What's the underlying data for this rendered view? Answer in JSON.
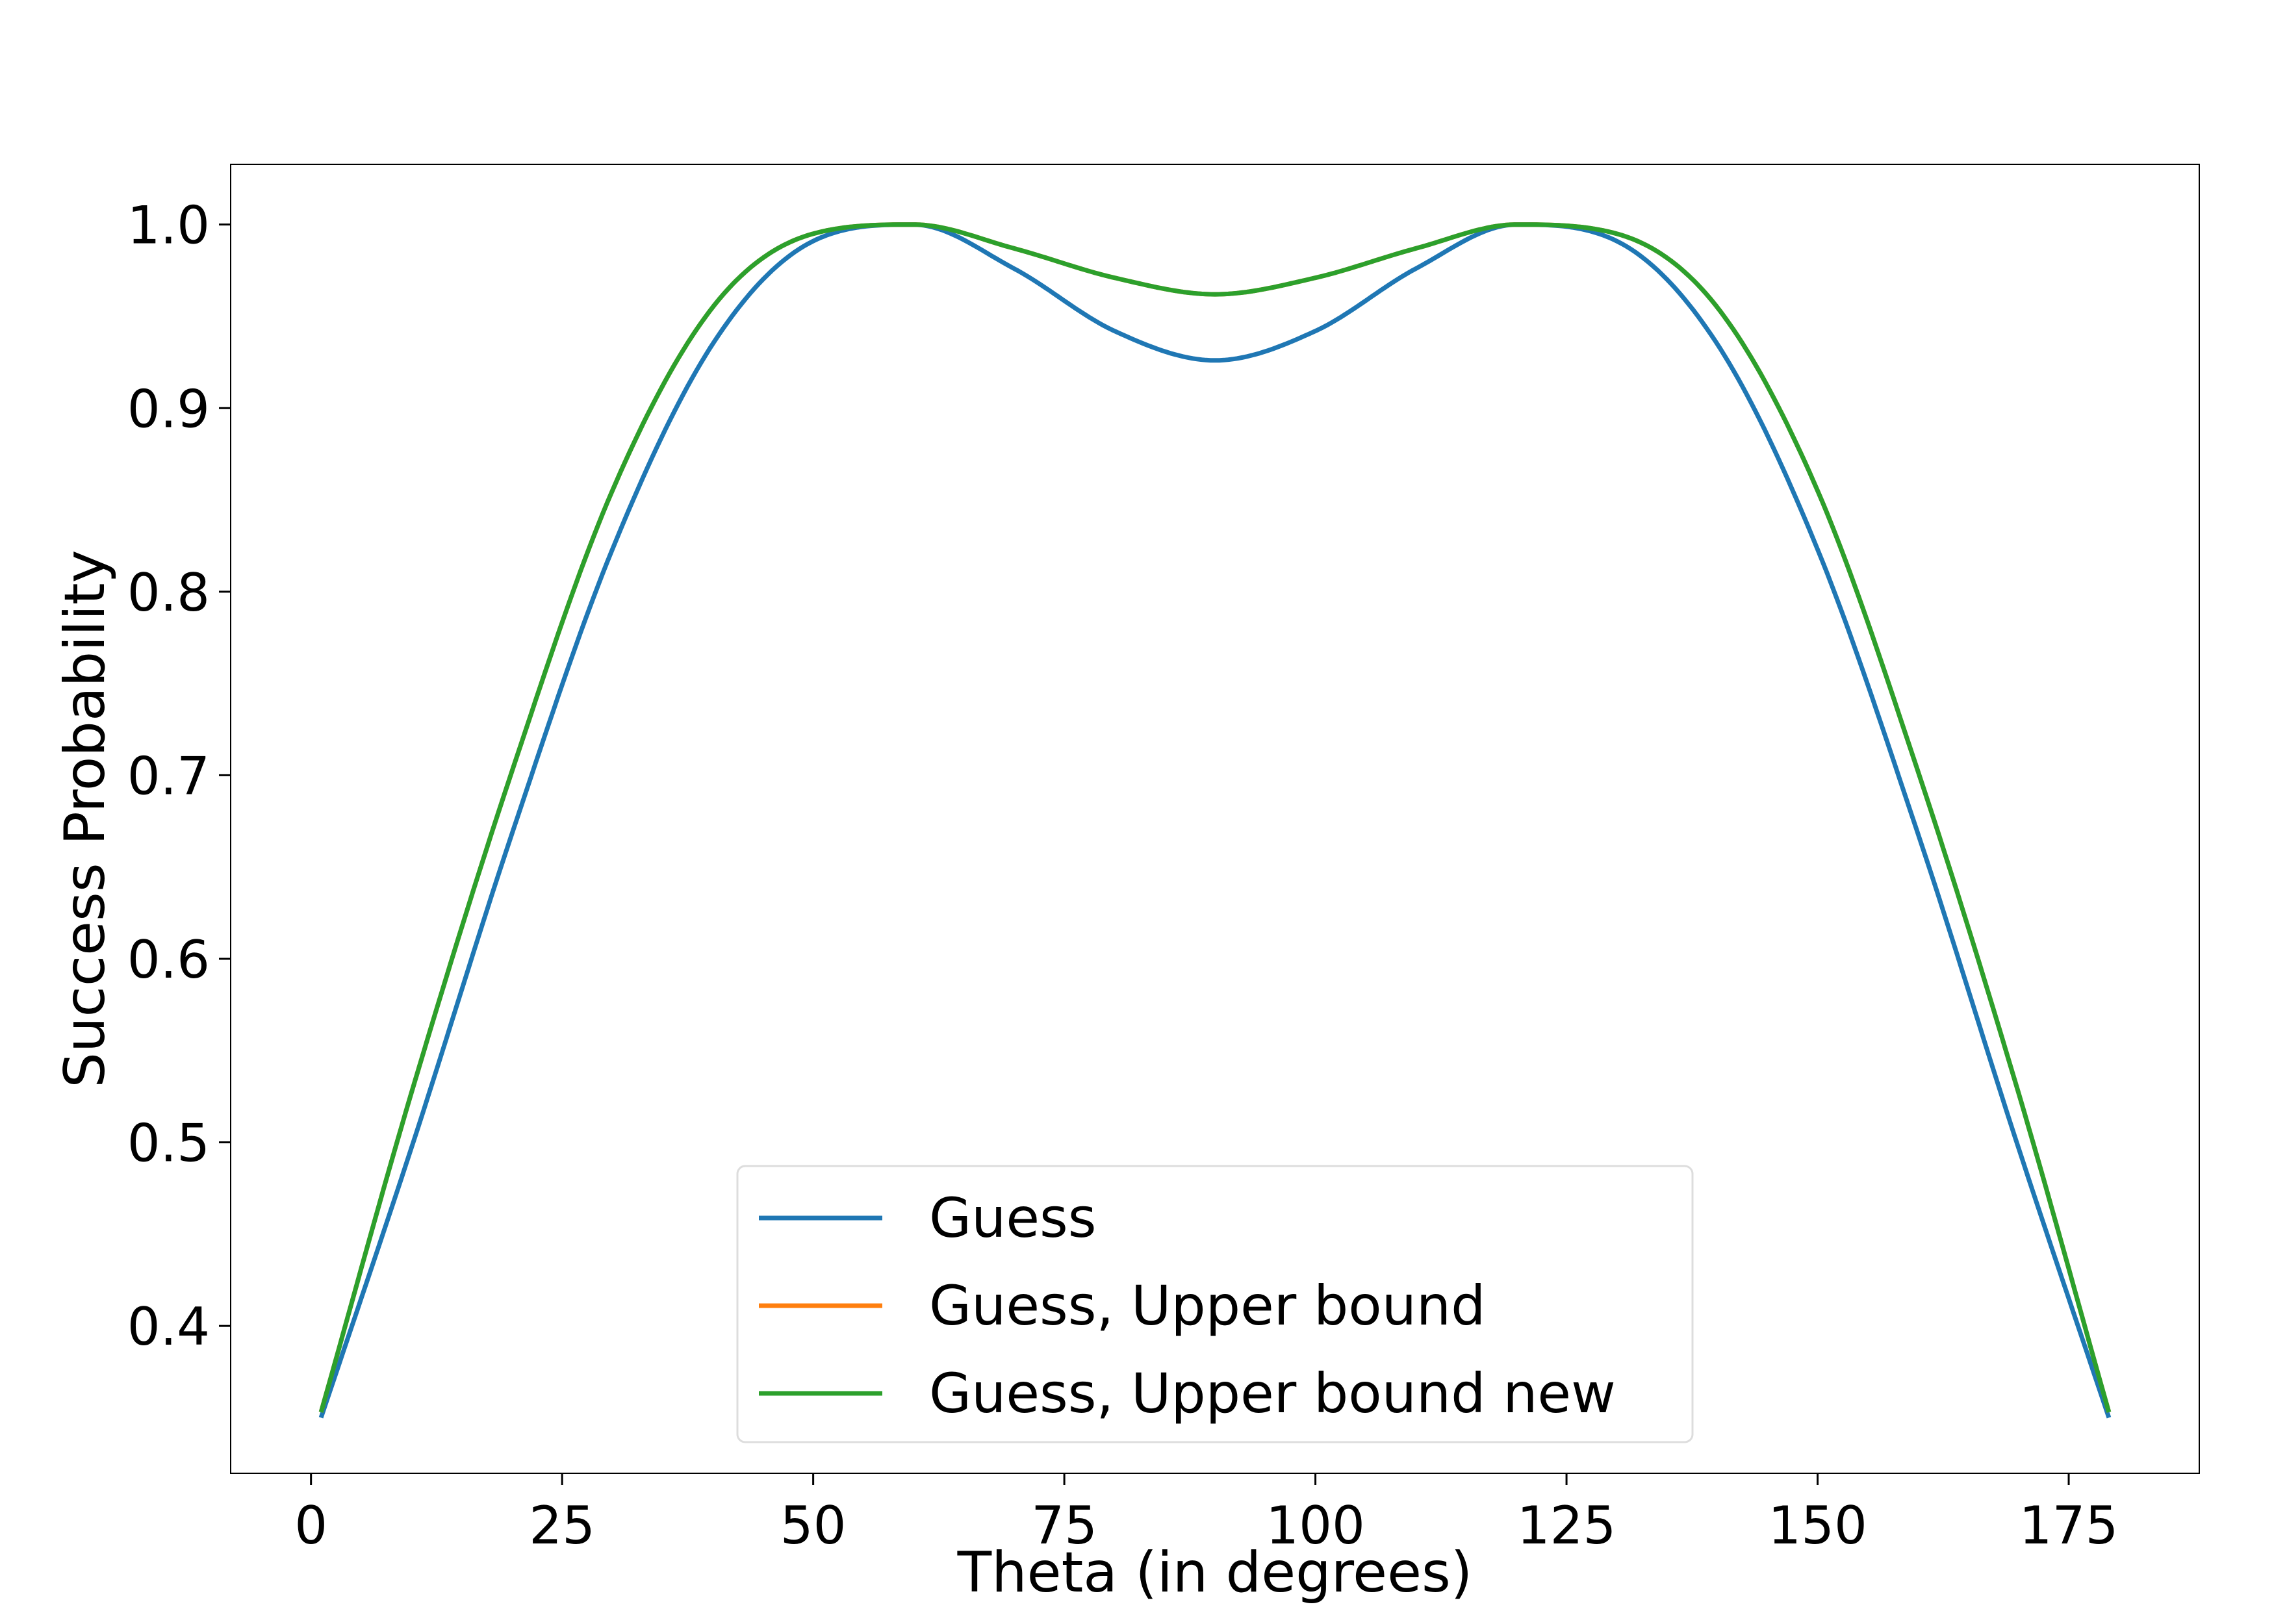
{
  "chart_data": {
    "type": "line",
    "title": "",
    "xlabel": "Theta (in degrees)",
    "ylabel": "Success Probability",
    "xlim": [
      -8,
      188
    ],
    "ylim": [
      0.3197,
      1.0328
    ],
    "xticks": [
      0,
      25,
      50,
      75,
      100,
      125,
      150,
      175
    ],
    "xtick_labels": [
      "0",
      "25",
      "50",
      "75",
      "100",
      "125",
      "150",
      "175"
    ],
    "yticks": [
      0.4,
      0.5,
      0.6,
      0.7,
      0.8,
      0.9,
      1.0
    ],
    "ytick_labels": [
      "0.4",
      "0.5",
      "0.6",
      "0.7",
      "0.8",
      "0.9",
      "1.0"
    ],
    "grid": false,
    "legend_position": "bottom-center",
    "x": [
      1,
      10,
      20,
      30,
      40,
      50,
      60,
      70,
      80,
      90,
      100,
      110,
      120,
      130,
      140,
      150,
      160,
      170,
      179
    ],
    "series": [
      {
        "name": "Guess",
        "color": "#1f77b4",
        "values": [
          0.35,
          0.497,
          0.668,
          0.823,
          0.935,
          0.991,
          1.0,
          0.976,
          0.942,
          0.926,
          0.942,
          0.976,
          1.0,
          0.991,
          0.935,
          0.823,
          0.668,
          0.497,
          0.35
        ]
      },
      {
        "name": "Guess, Upper bound",
        "color": "#ff7f0e",
        "values": [
          0.353,
          0.527,
          0.702,
          0.855,
          0.955,
          0.995,
          1.0,
          0.987,
          0.971,
          0.962,
          0.971,
          0.987,
          1.0,
          0.995,
          0.955,
          0.855,
          0.702,
          0.527,
          0.353
        ]
      },
      {
        "name": "Guess, Upper bound new",
        "color": "#2ca02c",
        "values": [
          0.353,
          0.527,
          0.702,
          0.855,
          0.955,
          0.995,
          1.0,
          0.987,
          0.971,
          0.962,
          0.971,
          0.987,
          1.0,
          0.995,
          0.955,
          0.855,
          0.702,
          0.527,
          0.353
        ]
      }
    ]
  }
}
